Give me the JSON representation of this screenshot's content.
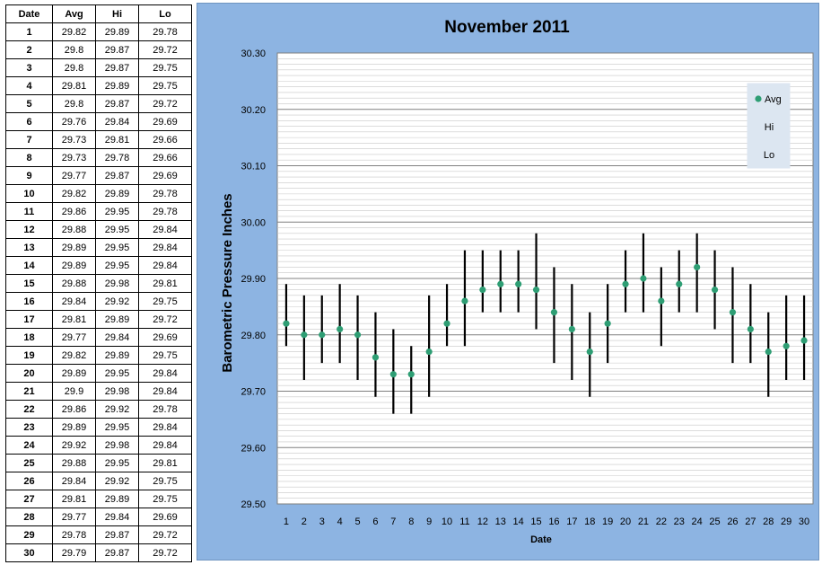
{
  "table": {
    "headers": [
      "Date",
      "Avg",
      "Hi",
      "Lo"
    ],
    "rows": [
      [
        "1",
        "29.82",
        "29.89",
        "29.78"
      ],
      [
        "2",
        "29.8",
        "29.87",
        "29.72"
      ],
      [
        "3",
        "29.8",
        "29.87",
        "29.75"
      ],
      [
        "4",
        "29.81",
        "29.89",
        "29.75"
      ],
      [
        "5",
        "29.8",
        "29.87",
        "29.72"
      ],
      [
        "6",
        "29.76",
        "29.84",
        "29.69"
      ],
      [
        "7",
        "29.73",
        "29.81",
        "29.66"
      ],
      [
        "8",
        "29.73",
        "29.78",
        "29.66"
      ],
      [
        "9",
        "29.77",
        "29.87",
        "29.69"
      ],
      [
        "10",
        "29.82",
        "29.89",
        "29.78"
      ],
      [
        "11",
        "29.86",
        "29.95",
        "29.78"
      ],
      [
        "12",
        "29.88",
        "29.95",
        "29.84"
      ],
      [
        "13",
        "29.89",
        "29.95",
        "29.84"
      ],
      [
        "14",
        "29.89",
        "29.95",
        "29.84"
      ],
      [
        "15",
        "29.88",
        "29.98",
        "29.81"
      ],
      [
        "16",
        "29.84",
        "29.92",
        "29.75"
      ],
      [
        "17",
        "29.81",
        "29.89",
        "29.72"
      ],
      [
        "18",
        "29.77",
        "29.84",
        "29.69"
      ],
      [
        "19",
        "29.82",
        "29.89",
        "29.75"
      ],
      [
        "20",
        "29.89",
        "29.95",
        "29.84"
      ],
      [
        "21",
        "29.9",
        "29.98",
        "29.84"
      ],
      [
        "22",
        "29.86",
        "29.92",
        "29.78"
      ],
      [
        "23",
        "29.89",
        "29.95",
        "29.84"
      ],
      [
        "24",
        "29.92",
        "29.98",
        "29.84"
      ],
      [
        "25",
        "29.88",
        "29.95",
        "29.81"
      ],
      [
        "26",
        "29.84",
        "29.92",
        "29.75"
      ],
      [
        "27",
        "29.81",
        "29.89",
        "29.75"
      ],
      [
        "28",
        "29.77",
        "29.84",
        "29.69"
      ],
      [
        "29",
        "29.78",
        "29.87",
        "29.72"
      ],
      [
        "30",
        "29.79",
        "29.87",
        "29.72"
      ]
    ]
  },
  "chart_data": {
    "type": "scatter",
    "title": "November 2011",
    "xlabel": "Date",
    "ylabel": "Barometric Pressure Inches",
    "ylim": [
      29.5,
      30.3
    ],
    "y_ticks": [
      "29.50",
      "29.60",
      "29.70",
      "29.80",
      "29.90",
      "30.00",
      "30.10",
      "30.20",
      "30.30"
    ],
    "grid": true,
    "legend_position": "top-right",
    "x": [
      1,
      2,
      3,
      4,
      5,
      6,
      7,
      8,
      9,
      10,
      11,
      12,
      13,
      14,
      15,
      16,
      17,
      18,
      19,
      20,
      21,
      22,
      23,
      24,
      25,
      26,
      27,
      28,
      29,
      30
    ],
    "x_ticks": [
      "1",
      "2",
      "3",
      "4",
      "5",
      "6",
      "7",
      "8",
      "9",
      "10",
      "11",
      "12",
      "13",
      "14",
      "15",
      "16",
      "17",
      "18",
      "19",
      "20",
      "21",
      "22",
      "23",
      "24",
      "25",
      "26",
      "27",
      "28",
      "29",
      "30"
    ],
    "series": [
      {
        "name": "Avg",
        "color": "#2e9e74",
        "values": [
          29.82,
          29.8,
          29.8,
          29.81,
          29.8,
          29.76,
          29.73,
          29.73,
          29.77,
          29.82,
          29.86,
          29.88,
          29.89,
          29.89,
          29.88,
          29.84,
          29.81,
          29.77,
          29.82,
          29.89,
          29.9,
          29.86,
          29.89,
          29.92,
          29.88,
          29.84,
          29.81,
          29.77,
          29.78,
          29.79
        ]
      },
      {
        "name": "Hi",
        "values": [
          29.89,
          29.87,
          29.87,
          29.89,
          29.87,
          29.84,
          29.81,
          29.78,
          29.87,
          29.89,
          29.95,
          29.95,
          29.95,
          29.95,
          29.98,
          29.92,
          29.89,
          29.84,
          29.89,
          29.95,
          29.98,
          29.92,
          29.95,
          29.98,
          29.95,
          29.92,
          29.89,
          29.84,
          29.87,
          29.87
        ]
      },
      {
        "name": "Lo",
        "values": [
          29.78,
          29.72,
          29.75,
          29.75,
          29.72,
          29.69,
          29.66,
          29.66,
          29.69,
          29.78,
          29.78,
          29.84,
          29.84,
          29.84,
          29.81,
          29.75,
          29.72,
          29.69,
          29.75,
          29.84,
          29.84,
          29.78,
          29.84,
          29.84,
          29.81,
          29.75,
          29.75,
          29.69,
          29.72,
          29.72
        ]
      }
    ]
  }
}
